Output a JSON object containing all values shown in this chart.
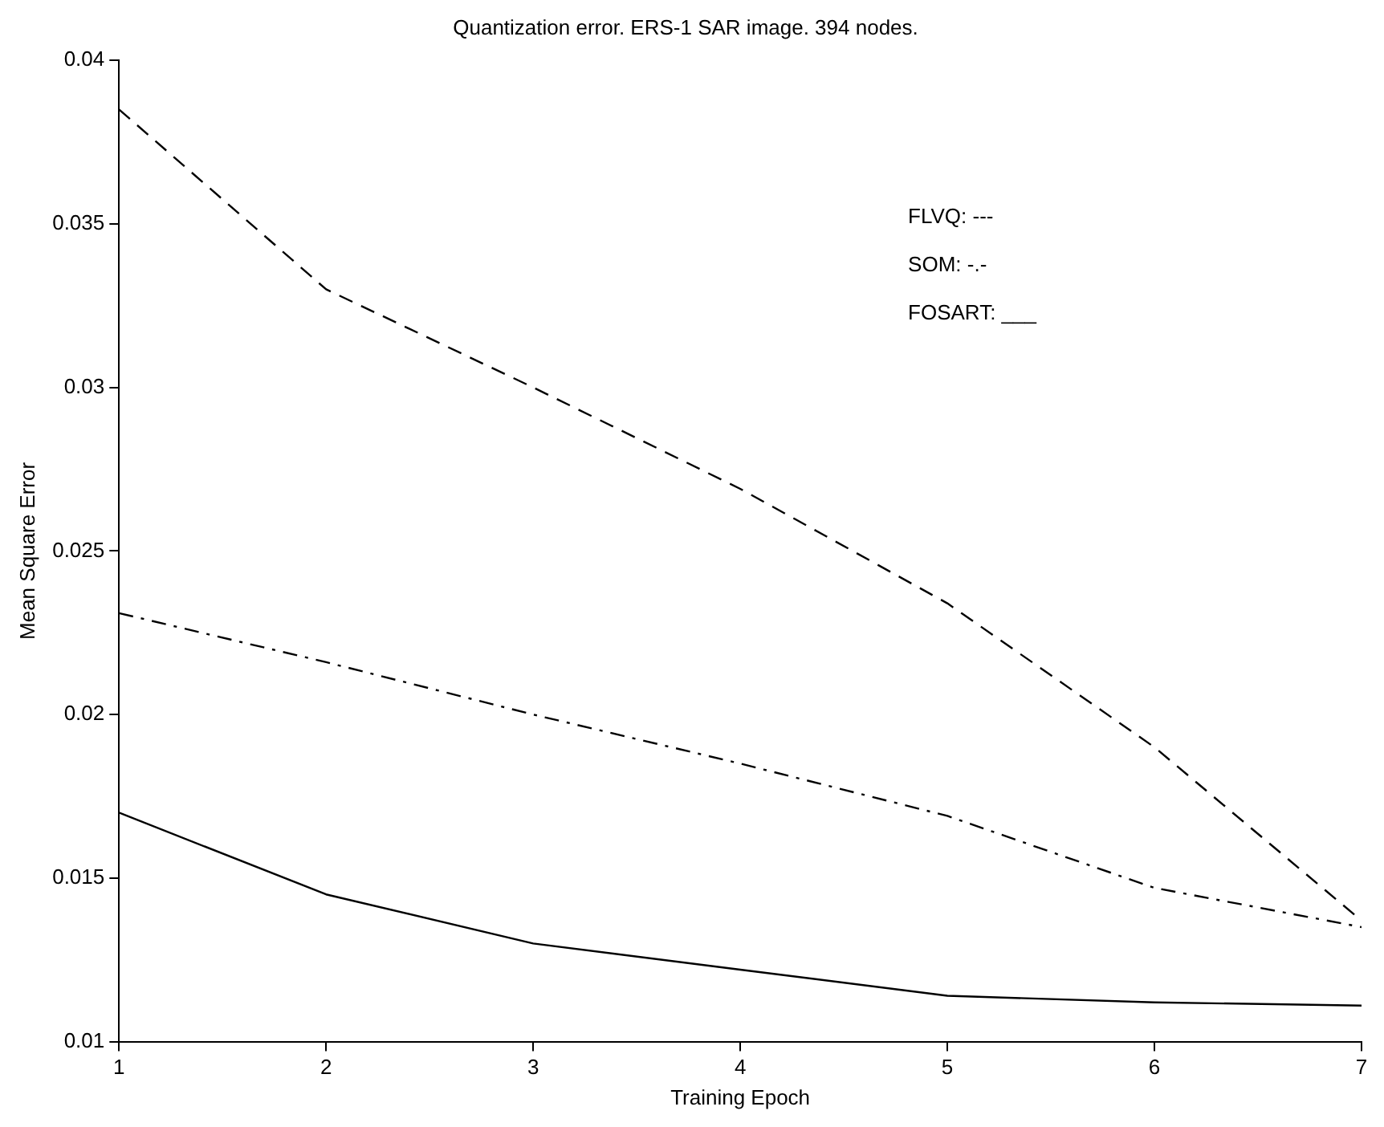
{
  "chart_data": {
    "type": "line",
    "title": "Quantization error. ERS-1 SAR image. 394 nodes.",
    "xlabel": "Training Epoch",
    "ylabel": "Mean Square Error",
    "x": [
      1,
      2,
      3,
      4,
      5,
      6,
      7
    ],
    "series": [
      {
        "color": "#000000",
        "line_style": "dashed",
        "values": [
          0.0385,
          0.033,
          0.03,
          0.0269,
          0.0234,
          0.019,
          0.0137
        ]
      },
      {
        "color": "#000000",
        "line_style": "dashdot",
        "values": [
          0.0231,
          0.0216,
          0.02,
          0.0185,
          0.0169,
          0.0147,
          0.0135
        ]
      },
      {
        "color": "#000000",
        "line_style": "solid",
        "values": [
          0.017,
          0.0145,
          0.013,
          0.0122,
          0.0114,
          0.0112,
          0.0111
        ]
      }
    ],
    "xlim": [
      1,
      7
    ],
    "xticks": [
      1,
      2,
      3,
      4,
      5,
      6,
      7
    ],
    "ylim": [
      0.01,
      0.04
    ],
    "yticks": [
      0.01,
      0.015,
      0.02,
      0.025,
      0.03,
      0.035,
      0.04
    ],
    "annotations": [
      "FLVQ: ---",
      "SOM: -.-",
      "FOSART: ___"
    ],
    "grid": false,
    "legend": false,
    "marker": "none"
  }
}
